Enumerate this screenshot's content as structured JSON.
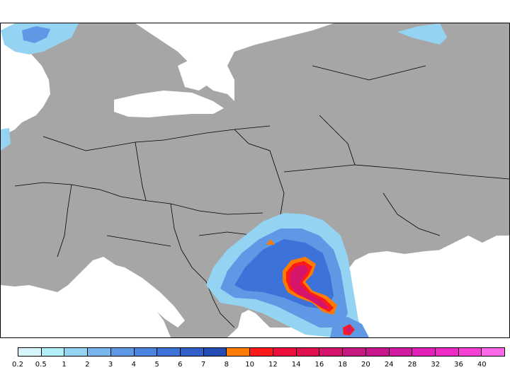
{
  "map": {
    "land_color": "#a6a6a6",
    "sea_color": "#ffffff",
    "border_color": "#000000"
  },
  "legend": {
    "labels": [
      "0.2",
      "0.5",
      "1",
      "2",
      "3",
      "4",
      "5",
      "6",
      "7",
      "8",
      "10",
      "12",
      "14",
      "16",
      "18",
      "20",
      "24",
      "28",
      "32",
      "36",
      "40"
    ],
    "colors": [
      "#d6f6fb",
      "#b0eef8",
      "#95d3f3",
      "#7ab6ee",
      "#5f99e6",
      "#4b84e0",
      "#3d73d8",
      "#305fc9",
      "#254cb4",
      "#ff7a00",
      "#ff1a1a",
      "#ee0e3c",
      "#e0104e",
      "#d4156b",
      "#c41a82",
      "#c8168f",
      "#d21aa2",
      "#e020b8",
      "#ee2ac6",
      "#f640d4",
      "#ff68e6"
    ]
  }
}
